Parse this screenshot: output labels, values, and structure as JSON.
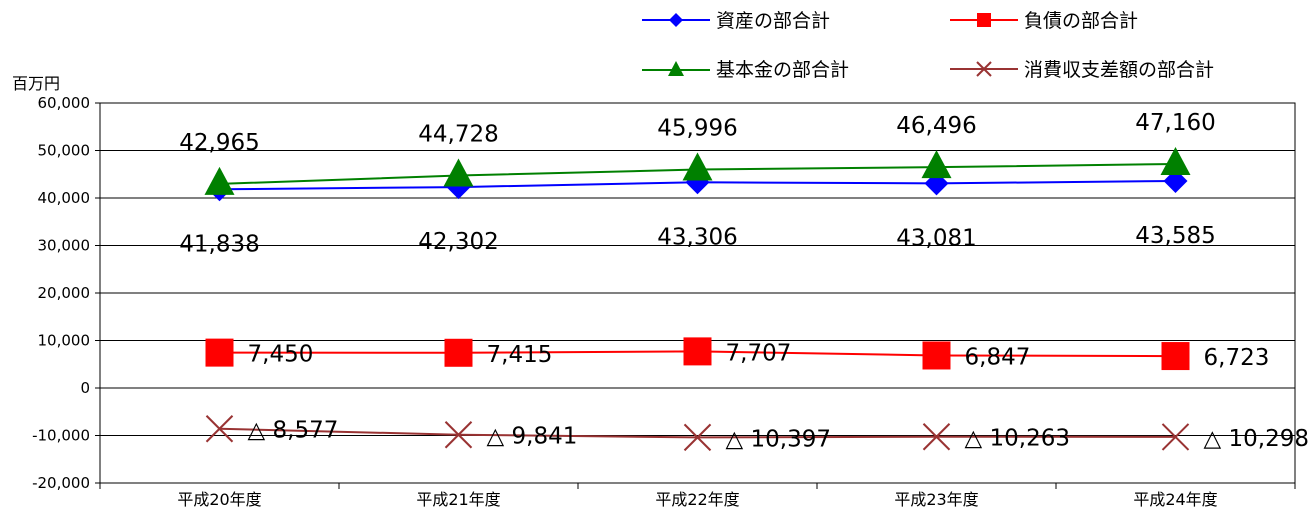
{
  "chart_data": {
    "type": "line",
    "unit_label": "百万円",
    "categories": [
      "平成20年度",
      "平成21年度",
      "平成22年度",
      "平成23年度",
      "平成24年度"
    ],
    "ylim": [
      -20000,
      60000
    ],
    "ytick_labels": [
      "60,000",
      "50,000",
      "40,000",
      "30,000",
      "20,000",
      "10,000",
      "0",
      "-10,000",
      "-20,000"
    ],
    "grid": true,
    "legend_position": "top-right",
    "series": [
      {
        "name": "資産の部合計",
        "color": "#0000ff",
        "marker": "diamond",
        "values": [
          41838,
          42302,
          43306,
          43081,
          43585
        ],
        "labels": [
          "41,838",
          "42,302",
          "43,306",
          "43,081",
          "43,585"
        ]
      },
      {
        "name": "負債の部合計",
        "color": "#ff0000",
        "marker": "square",
        "values": [
          7450,
          7415,
          7707,
          6847,
          6723
        ],
        "labels": [
          "7,450",
          "7,415",
          "7,707",
          "6,847",
          "6,723"
        ]
      },
      {
        "name": "基本金の部合計",
        "color": "#008000",
        "marker": "triangle",
        "values": [
          42965,
          44728,
          45996,
          46496,
          47160
        ],
        "labels": [
          "42,965",
          "44,728",
          "45,996",
          "46,496",
          "47,160"
        ]
      },
      {
        "name": "消費収支差額の部合計",
        "color": "#993333",
        "marker": "x",
        "values": [
          -8577,
          -9841,
          -10397,
          -10263,
          -10298
        ],
        "labels": [
          "△ 8,577",
          "△ 9,841",
          "△ 10,397",
          "△ 10,263",
          "△ 10,298"
        ]
      }
    ]
  }
}
